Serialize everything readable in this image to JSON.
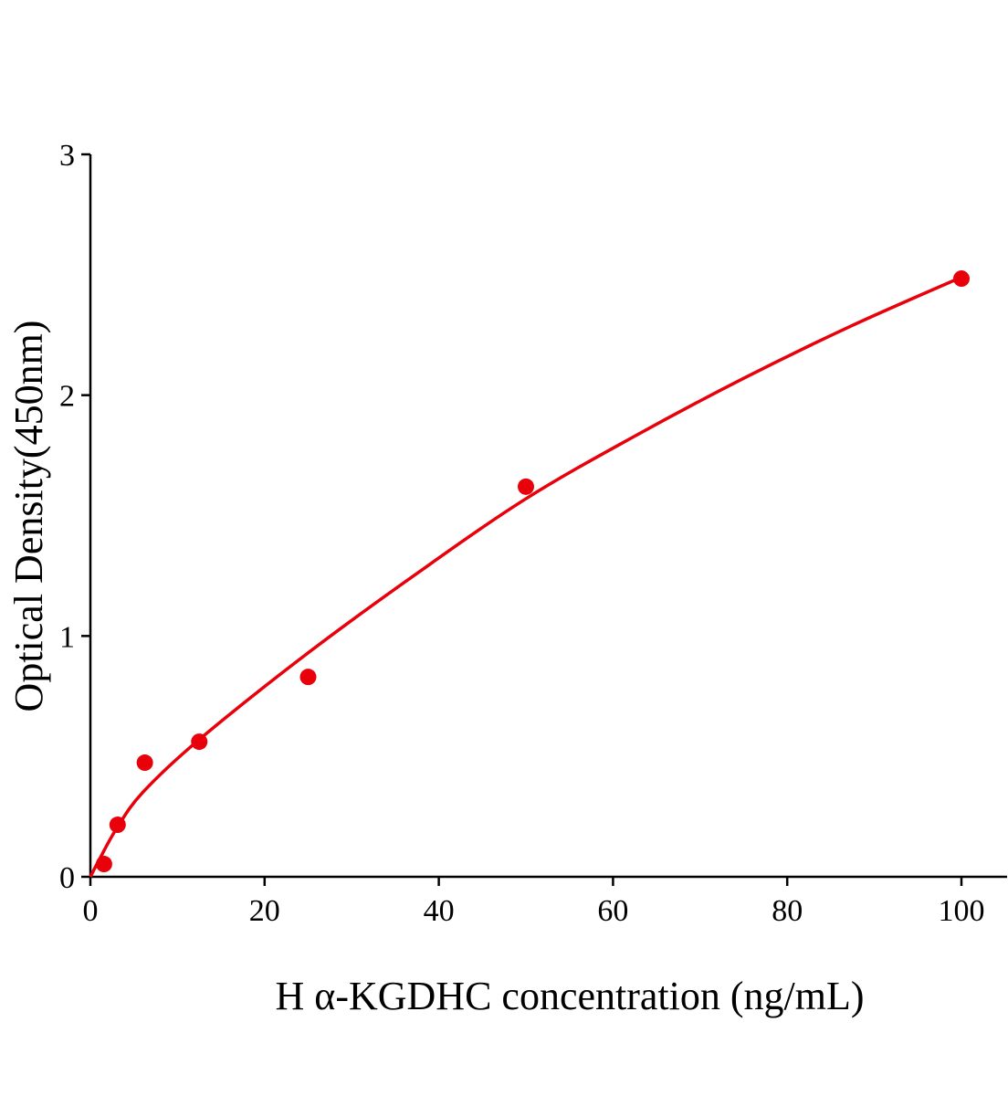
{
  "chart_data": {
    "type": "scatter",
    "title": "",
    "xlabel": "H α-KGDHC concentration (ng/mL)",
    "ylabel": "Optical Density(450nm)",
    "xlim": [
      0,
      105
    ],
    "ylim": [
      0,
      3
    ],
    "x_ticks": [
      "0",
      "20",
      "40",
      "60",
      "80",
      "100"
    ],
    "y_ticks": [
      "0",
      "1",
      "2",
      "3"
    ],
    "grid": false,
    "legend": "none",
    "color": "#e8000b",
    "points": {
      "x": [
        1.5625,
        3.125,
        6.25,
        12.5,
        25,
        50,
        100
      ],
      "y": [
        0.053,
        0.216,
        0.474,
        0.561,
        0.83,
        1.62,
        2.484
      ]
    },
    "fit_curve": {
      "x": [
        0,
        1,
        3,
        6,
        12.5,
        25,
        37.5,
        50,
        62.5,
        75,
        87.5,
        100
      ],
      "y": [
        0,
        0.07,
        0.2,
        0.35,
        0.57,
        0.93,
        1.26,
        1.57,
        1.83,
        2.07,
        2.29,
        2.49
      ]
    }
  }
}
